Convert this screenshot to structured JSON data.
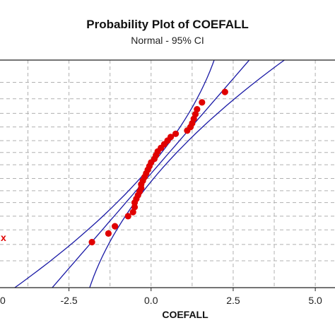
{
  "chart_data": {
    "type": "scatter",
    "title": "Probability Plot of COEFALL",
    "subtitle": "Normal - 95% CI",
    "xlabel": "COEFALL",
    "ylabel": "",
    "xlim": [
      -4.6,
      5.6
    ],
    "x_ticks": [
      {
        "value": -2.5,
        "label": "-2.5"
      },
      {
        "value": 0,
        "label": "0.0"
      },
      {
        "value": 2.5,
        "label": "2.5"
      },
      {
        "value": 5,
        "label": "5.0"
      }
    ],
    "x_edge_label": {
      "value": -4.7,
      "label": "0"
    },
    "ylim": [
      -2.55,
      2.45
    ],
    "y_gridlines": [
      -1.96,
      -1.6,
      -1.28,
      -0.98,
      -0.68,
      -0.42,
      -0.15,
      0.15,
      0.42,
      0.68,
      0.98,
      1.28,
      1.6,
      1.96
    ],
    "grid": true,
    "fit": {
      "mean": 0.05,
      "sd": 1.2,
      "ci_half_width_z": 0.17,
      "ci_width_growth": 0.12
    },
    "series": [
      {
        "marker": "circle",
        "points": [
          {
            "x": -1.8,
            "z": -1.55
          },
          {
            "x": -1.3,
            "z": -1.36
          },
          {
            "x": -1.1,
            "z": -1.2
          },
          {
            "x": -0.7,
            "z": -0.98
          },
          {
            "x": -0.55,
            "z": -0.89
          },
          {
            "x": -0.5,
            "z": -0.78
          },
          {
            "x": -0.5,
            "z": -0.68
          },
          {
            "x": -0.45,
            "z": -0.6
          },
          {
            "x": -0.4,
            "z": -0.52
          },
          {
            "x": -0.35,
            "z": -0.44
          },
          {
            "x": -0.3,
            "z": -0.36
          },
          {
            "x": -0.3,
            "z": -0.28
          },
          {
            "x": -0.25,
            "z": -0.2
          },
          {
            "x": -0.2,
            "z": -0.12
          },
          {
            "x": -0.15,
            "z": -0.04
          },
          {
            "x": -0.1,
            "z": 0.04
          },
          {
            "x": -0.05,
            "z": 0.12
          },
          {
            "x": 0.0,
            "z": 0.2
          },
          {
            "x": 0.1,
            "z": 0.28
          },
          {
            "x": 0.15,
            "z": 0.36
          },
          {
            "x": 0.2,
            "z": 0.44
          },
          {
            "x": 0.3,
            "z": 0.52
          },
          {
            "x": 0.4,
            "z": 0.6
          },
          {
            "x": 0.5,
            "z": 0.68
          },
          {
            "x": 0.6,
            "z": 0.76
          },
          {
            "x": 0.75,
            "z": 0.83
          },
          {
            "x": 1.1,
            "z": 0.9
          },
          {
            "x": 1.2,
            "z": 0.98
          },
          {
            "x": 1.25,
            "z": 1.06
          },
          {
            "x": 1.3,
            "z": 1.16
          },
          {
            "x": 1.35,
            "z": 1.26
          },
          {
            "x": 1.4,
            "z": 1.37
          },
          {
            "x": 1.55,
            "z": 1.52
          },
          {
            "x": 2.25,
            "z": 1.75
          }
        ]
      }
    ],
    "colors": {
      "points": "#e00000",
      "fit_line": "#1a1aa6",
      "ci_lines": "#1a1aa6",
      "legend_mark": "#e00000"
    },
    "legend_marker": "x",
    "legend_placement": "left-edge"
  }
}
